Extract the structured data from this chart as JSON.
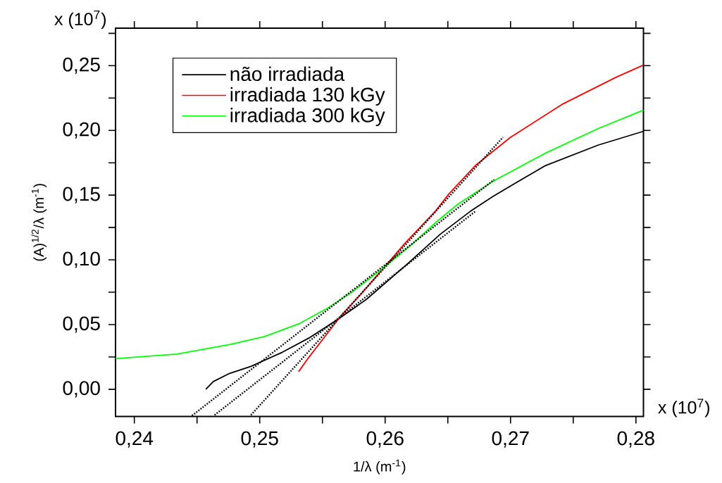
{
  "chart_data": {
    "type": "line",
    "xlabel": "1/λ  (m$^{-1}$)",
    "ylabel": "(A)$^{1/2}$/λ  (m$^{-1}$)",
    "annotations": [
      "x (10$^{7}$)",
      "x (10$^{7}$)"
    ],
    "xlim": [
      0.2385,
      0.2806
    ],
    "ylim": [
      -0.021,
      0.279
    ],
    "xticks": [
      {
        "value": 0.24,
        "label": "0,24"
      },
      {
        "value": 0.245,
        "label": null
      },
      {
        "value": 0.25,
        "label": "0,25"
      },
      {
        "value": 0.255,
        "label": null
      },
      {
        "value": 0.26,
        "label": "0,26"
      },
      {
        "value": 0.265,
        "label": null
      },
      {
        "value": 0.27,
        "label": "0,27"
      },
      {
        "value": 0.275,
        "label": null
      },
      {
        "value": 0.28,
        "label": "0,28"
      }
    ],
    "yticks": [
      {
        "value": 0.0,
        "label": "0,00"
      },
      {
        "value": 0.025,
        "label": null
      },
      {
        "value": 0.05,
        "label": "0,05"
      },
      {
        "value": 0.075,
        "label": null
      },
      {
        "value": 0.1,
        "label": "0,10"
      },
      {
        "value": 0.125,
        "label": null
      },
      {
        "value": 0.15,
        "label": "0,15"
      },
      {
        "value": 0.175,
        "label": null
      },
      {
        "value": 0.2,
        "label": "0,20"
      },
      {
        "value": 0.225,
        "label": null
      },
      {
        "value": 0.25,
        "label": "0,25"
      },
      {
        "value": 0.275,
        "label": null
      }
    ],
    "legend": "top left",
    "series": [
      {
        "name": "não irradiada",
        "color": "#000000",
        "x": [
          0.2457,
          0.2463,
          0.2476,
          0.2493,
          0.2518,
          0.254,
          0.2563,
          0.2585,
          0.2616,
          0.2644,
          0.2668,
          0.2686,
          0.2703,
          0.2728,
          0.277,
          0.2806
        ],
        "values": [
          0.0,
          0.006,
          0.0123,
          0.0177,
          0.0286,
          0.04,
          0.0545,
          0.0694,
          0.0953,
          0.1198,
          0.1375,
          0.149,
          0.1588,
          0.1729,
          0.1887,
          0.1993
        ]
      },
      {
        "name": "irradiada 130 kGy",
        "color": "#ff0000",
        "x": [
          0.2531,
          0.2539,
          0.2551,
          0.2564,
          0.2582,
          0.2599,
          0.2616,
          0.264,
          0.2651,
          0.2672,
          0.27,
          0.2742,
          0.2784,
          0.2806
        ],
        "values": [
          0.0136,
          0.0245,
          0.0395,
          0.0558,
          0.0749,
          0.094,
          0.113,
          0.1375,
          0.1511,
          0.1729,
          0.1947,
          0.2206,
          0.241,
          0.2505
        ]
      },
      {
        "name": "irradiada 300 kGy",
        "color": "#00ff00",
        "x": [
          0.2385,
          0.2434,
          0.2476,
          0.2504,
          0.2532,
          0.2554,
          0.2574,
          0.2599,
          0.2621,
          0.2641,
          0.2658,
          0.2686,
          0.2728,
          0.277,
          0.2806
        ],
        "values": [
          0.0237,
          0.0272,
          0.0346,
          0.0408,
          0.0509,
          0.0626,
          0.0754,
          0.094,
          0.1117,
          0.1294,
          0.143,
          0.1607,
          0.1825,
          0.2015,
          0.2157
        ]
      },
      {
        "color": "#000000",
        "line_style": "dotted",
        "x": [
          0.2446,
          0.2687
        ],
        "values": [
          -0.0204,
          0.162
        ]
      },
      {
        "color": "#000000",
        "line_style": "dotted",
        "x": [
          0.2464,
          0.2672
        ],
        "values": [
          -0.0199,
          0.1375
        ]
      },
      {
        "color": "#000000",
        "line_style": "dotted",
        "x": [
          0.2493,
          0.2694
        ],
        "values": [
          -0.0199,
          0.1947
        ]
      }
    ]
  }
}
